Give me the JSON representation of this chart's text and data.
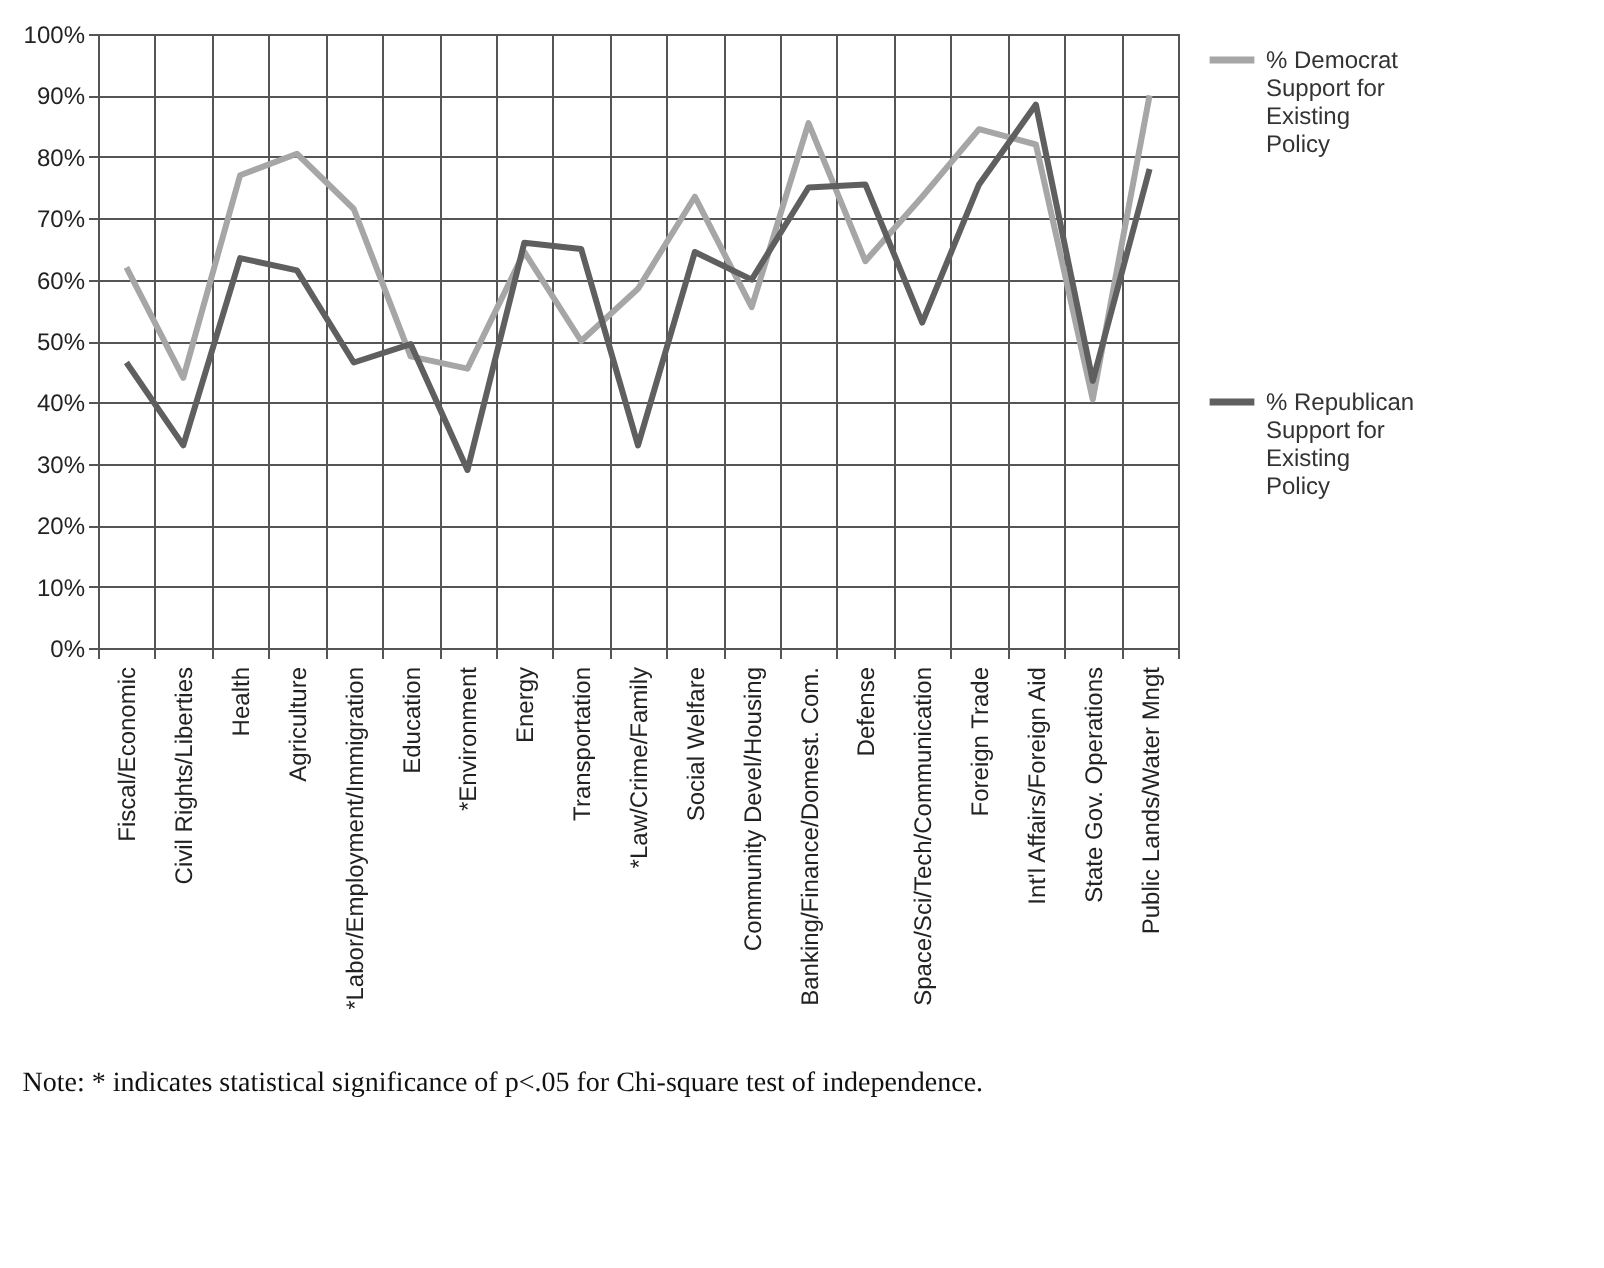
{
  "chart_data": {
    "type": "line",
    "categories": [
      "Fiscal/Economic",
      "Civil Rights/Liberties",
      "Health",
      "Agriculture",
      "*Labor/Employment/Immigration",
      "Education",
      "*Environment",
      "Energy",
      "Transportation",
      "*Law/Crime/Family",
      "Social Welfare",
      "Community Devel/Housing",
      "Banking/Finance/Domest. Com.",
      "Defense",
      "Space/Sci/Tech/Communication",
      "Foreign Trade",
      "Int'l Affairs/Foreign Aid",
      "State Gov. Operations",
      "Public Lands/Water Mngt"
    ],
    "series": [
      {
        "name": "% Democrat Support for Existing Policy",
        "color": "#a6a6a6",
        "values": [
          62,
          44,
          77,
          80.5,
          71.5,
          47.5,
          45.5,
          64.5,
          50,
          58.5,
          73.5,
          55.5,
          85.5,
          63,
          73.5,
          84.5,
          82,
          40.5,
          90
        ]
      },
      {
        "name": "% Republican Support for Existing Policy",
        "color": "#5f5f5f",
        "values": [
          46.5,
          33,
          63.5,
          61.5,
          46.5,
          49.5,
          29,
          66,
          65,
          33,
          64.5,
          60,
          75,
          75.5,
          53,
          75.5,
          88.5,
          43.5,
          78
        ]
      }
    ],
    "ylim": [
      0,
      100
    ],
    "yticks": [
      {
        "value": 0,
        "label": "0%"
      },
      {
        "value": 10,
        "label": "10%"
      },
      {
        "value": 20,
        "label": "20%"
      },
      {
        "value": 30,
        "label": "30%"
      },
      {
        "value": 40,
        "label": "40%"
      },
      {
        "value": 50,
        "label": "50%"
      },
      {
        "value": 60,
        "label": "60%"
      },
      {
        "value": 70,
        "label": "70%"
      },
      {
        "value": 80,
        "label": "80%"
      },
      {
        "value": 90,
        "label": "90%"
      },
      {
        "value": 100,
        "label": "100%"
      }
    ],
    "grid": true,
    "legend": "right",
    "marker": "none",
    "line_style": "solid",
    "annotations": [
      "Note: * indicates statistical significance of p<.05 for Chi-square test of independence."
    ]
  }
}
